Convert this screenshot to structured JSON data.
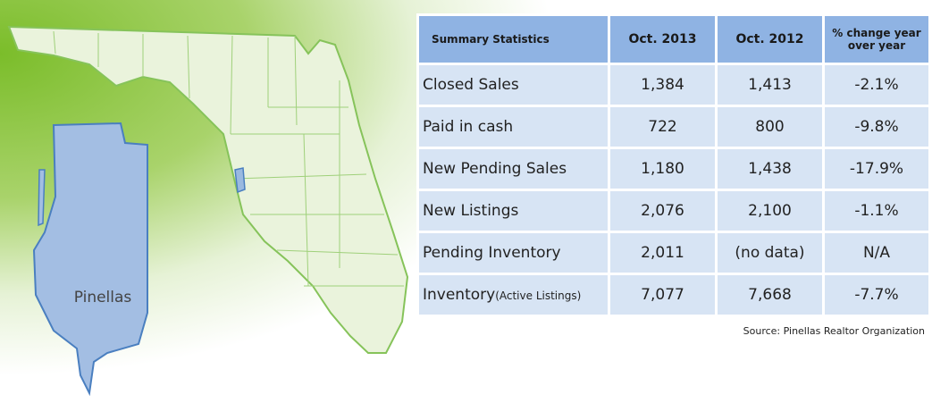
{
  "map": {
    "label": "Pinellas"
  },
  "table": {
    "header": [
      "Summary Statistics",
      "Oct. 2013",
      "Oct. 2012",
      "% change year over year"
    ],
    "rows": [
      {
        "label": "Closed Sales",
        "cells": [
          "1,384",
          "1,413",
          "-2.1%"
        ]
      },
      {
        "label": "Paid in cash",
        "cells": [
          "722",
          "800",
          "-9.8%"
        ]
      },
      {
        "label": "New Pending Sales",
        "cells": [
          "1,180",
          "1,438",
          "-17.9%"
        ]
      },
      {
        "label": "New Listings",
        "cells": [
          "2,076",
          "2,100",
          "-1.1%"
        ]
      },
      {
        "label": "Pending Inventory",
        "cells": [
          "2,011",
          "(no data)",
          "N/A"
        ]
      },
      {
        "label": "Inventory",
        "note": "(Active Listings)",
        "cells": [
          "7,077",
          "7,668",
          "-7.7%"
        ]
      }
    ]
  },
  "source": "Source: Pinellas Realtor Organization"
}
